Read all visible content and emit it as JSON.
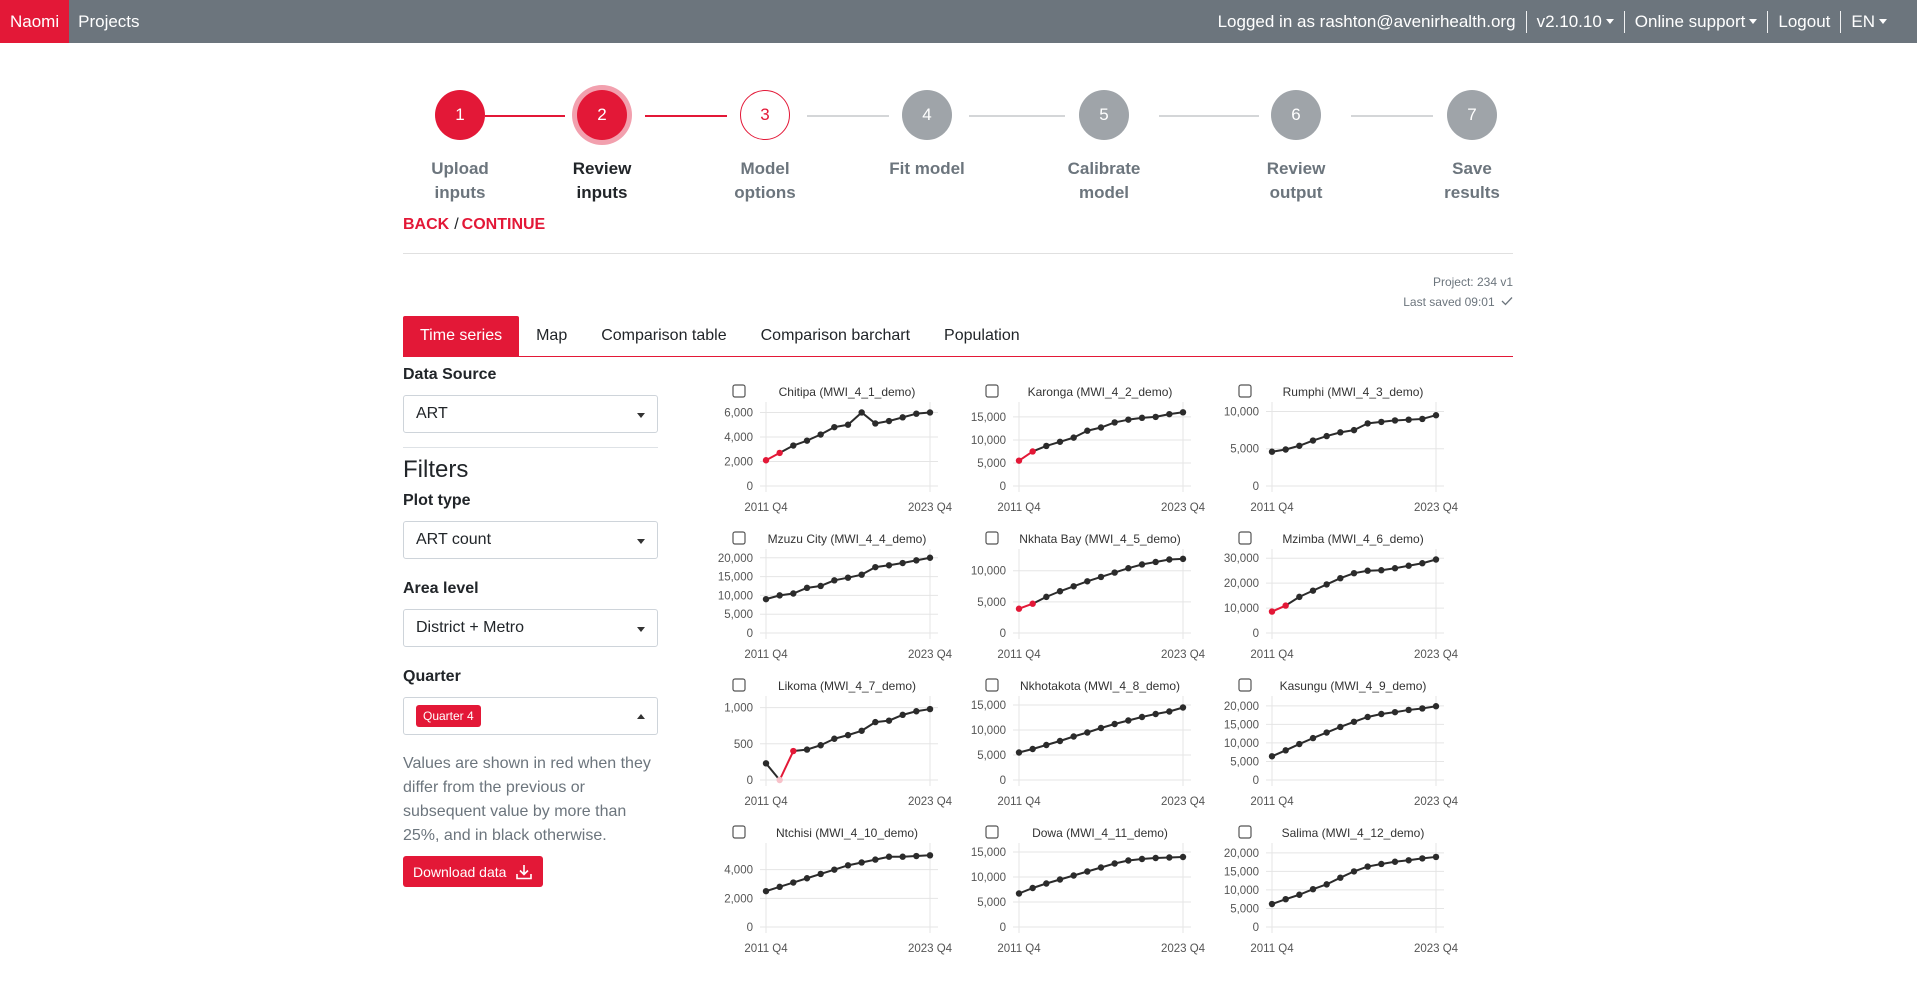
{
  "navbar": {
    "brand": "Naomi",
    "projects": "Projects",
    "logged_in": "Logged in as rashton@avenirhealth.org",
    "version": "v2.10.10",
    "support": "Online support",
    "logout": "Logout",
    "lang": "EN"
  },
  "steps": [
    {
      "num": "1",
      "line1": "Upload",
      "line2": "inputs",
      "state": "done"
    },
    {
      "num": "2",
      "line1": "Review",
      "line2": "inputs",
      "state": "active"
    },
    {
      "num": "3",
      "line1": "Model",
      "line2": "options",
      "state": "open"
    },
    {
      "num": "4",
      "line1": "Fit model",
      "line2": "",
      "state": "disabled"
    },
    {
      "num": "5",
      "line1": "Calibrate",
      "line2": "model",
      "state": "disabled"
    },
    {
      "num": "6",
      "line1": "Review",
      "line2": "output",
      "state": "disabled"
    },
    {
      "num": "7",
      "line1": "Save",
      "line2": "results",
      "state": "disabled"
    }
  ],
  "nav_actions": {
    "back": "BACK",
    "sep": "/",
    "continue": "CONTINUE"
  },
  "project": {
    "name": "Project: 234 v1",
    "saved": "Last saved 09:01",
    "saved_icon": "check-icon"
  },
  "tabs": [
    "Time series",
    "Map",
    "Comparison table",
    "Comparison barchart",
    "Population"
  ],
  "sidebar": {
    "data_source_label": "Data Source",
    "data_source_value": "ART",
    "filters_title": "Filters",
    "plot_type_label": "Plot type",
    "plot_type_value": "ART count",
    "area_level_label": "Area level",
    "area_level_value": "District + Metro",
    "quarter_label": "Quarter",
    "quarter_chip": "Quarter 4",
    "note": "Values are shown in red when they differ from the previous or subsequent value by more than 25%, and in black otherwise.",
    "download": "Download data",
    "download_icon": "download-icon"
  },
  "colors": {
    "accent": "#e31837",
    "line": "#2b2b2b",
    "grid": "#e5e5e5"
  },
  "chart_data": [
    {
      "type": "line",
      "title": "Chitipa (MWI_4_1_demo)",
      "yticks": [
        0,
        2000,
        4000,
        6000
      ],
      "ylim": [
        0,
        6200
      ],
      "x_first": "2011 Q4",
      "x_last": "2023 Q4",
      "values": [
        2100,
        2700,
        3300,
        3700,
        4200,
        4800,
        5000,
        6000,
        5100,
        5300,
        5600,
        5900,
        6000
      ],
      "red": [
        0,
        1
      ]
    },
    {
      "type": "line",
      "title": "Karonga (MWI_4_2_demo)",
      "yticks": [
        0,
        5000,
        10000,
        15000
      ],
      "ylim": [
        0,
        16500
      ],
      "x_first": "2011 Q4",
      "x_last": "2023 Q4",
      "values": [
        5500,
        7500,
        8700,
        9600,
        10500,
        12000,
        12700,
        13800,
        14400,
        14800,
        15000,
        15600,
        16000
      ],
      "red": [
        0,
        1
      ]
    },
    {
      "type": "line",
      "title": "Rumphi (MWI_4_3_demo)",
      "yticks": [
        0,
        5000,
        10000
      ],
      "ylim": [
        0,
        10200
      ],
      "x_first": "2011 Q4",
      "x_last": "2023 Q4",
      "values": [
        4600,
        4900,
        5400,
        6100,
        6700,
        7200,
        7500,
        8400,
        8600,
        8800,
        8900,
        9000,
        9500
      ],
      "red": []
    },
    {
      "type": "line",
      "title": "Mzuzu City (MWI_4_4_demo)",
      "yticks": [
        0,
        5000,
        10000,
        15000,
        20000
      ],
      "ylim": [
        0,
        20200
      ],
      "x_first": "2011 Q4",
      "x_last": "2023 Q4",
      "values": [
        9000,
        10000,
        10500,
        12000,
        12500,
        14000,
        14700,
        15500,
        17500,
        18000,
        18600,
        19300,
        20000
      ],
      "red": []
    },
    {
      "type": "line",
      "title": "Nkhata Bay (MWI_4_5_demo)",
      "yticks": [
        0,
        5000,
        10000
      ],
      "ylim": [
        0,
        12200
      ],
      "x_first": "2011 Q4",
      "x_last": "2023 Q4",
      "values": [
        3900,
        4700,
        5800,
        6700,
        7500,
        8300,
        9000,
        9700,
        10400,
        11000,
        11400,
        11800,
        11900
      ],
      "red": [
        0,
        1
      ]
    },
    {
      "type": "line",
      "title": "Mzimba (MWI_4_6_demo)",
      "yticks": [
        0,
        10000,
        20000,
        30000
      ],
      "ylim": [
        0,
        30500
      ],
      "x_first": "2011 Q4",
      "x_last": "2023 Q4",
      "values": [
        8600,
        11000,
        14500,
        17000,
        19500,
        22000,
        24000,
        25000,
        25200,
        26000,
        27000,
        28000,
        29500
      ],
      "red": [
        0,
        1
      ]
    },
    {
      "type": "line",
      "title": "Likoma (MWI_4_7_demo)",
      "yticks": [
        0,
        500,
        1000
      ],
      "ylim": [
        0,
        1050
      ],
      "x_first": "2011 Q4",
      "x_last": "2023 Q4",
      "values": [
        230,
        0,
        400,
        420,
        480,
        570,
        620,
        680,
        800,
        820,
        900,
        950,
        980
      ],
      "red": [
        1,
        2
      ]
    },
    {
      "type": "line",
      "title": "Nkhotakota (MWI_4_8_demo)",
      "yticks": [
        0,
        5000,
        10000,
        15000
      ],
      "ylim": [
        0,
        15200
      ],
      "x_first": "2011 Q4",
      "x_last": "2023 Q4",
      "values": [
        5500,
        6200,
        7000,
        7800,
        8700,
        9500,
        10400,
        11200,
        11900,
        12600,
        13200,
        13700,
        14500
      ],
      "red": []
    },
    {
      "type": "line",
      "title": "Kasungu (MWI_4_9_demo)",
      "yticks": [
        0,
        5000,
        10000,
        15000,
        20000
      ],
      "ylim": [
        0,
        20500
      ],
      "x_first": "2011 Q4",
      "x_last": "2023 Q4",
      "values": [
        6400,
        8000,
        9700,
        11300,
        12800,
        14300,
        15700,
        17000,
        17800,
        18300,
        18900,
        19300,
        19900
      ],
      "red": []
    },
    {
      "type": "line",
      "title": "Ntchisi (MWI_4_10_demo)",
      "yticks": [
        0,
        2000,
        4000
      ],
      "ylim": [
        0,
        5300
      ],
      "x_first": "2011 Q4",
      "x_last": "2023 Q4",
      "values": [
        2500,
        2800,
        3100,
        3400,
        3700,
        4000,
        4300,
        4500,
        4700,
        4900,
        4900,
        4950,
        5000
      ],
      "red": []
    },
    {
      "type": "line",
      "title": "Dowa (MWI_4_11_demo)",
      "yticks": [
        0,
        5000,
        10000,
        15000
      ],
      "ylim": [
        0,
        15200
      ],
      "x_first": "2011 Q4",
      "x_last": "2023 Q4",
      "values": [
        6700,
        7800,
        8700,
        9500,
        10300,
        11100,
        11900,
        12700,
        13300,
        13600,
        13800,
        13900,
        14000
      ],
      "red": []
    },
    {
      "type": "line",
      "title": "Salima (MWI_4_12_demo)",
      "yticks": [
        0,
        5000,
        10000,
        15000,
        20000
      ],
      "ylim": [
        0,
        20500
      ],
      "x_first": "2011 Q4",
      "x_last": "2023 Q4",
      "values": [
        6200,
        7500,
        8700,
        10200,
        11500,
        13300,
        15000,
        16300,
        17000,
        17600,
        18000,
        18500,
        18900
      ],
      "red": []
    }
  ]
}
